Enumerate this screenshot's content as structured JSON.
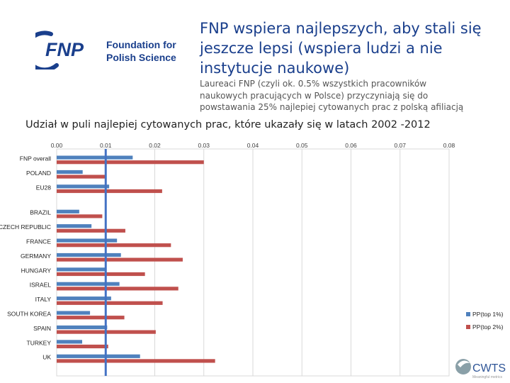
{
  "logo": {
    "abbrev": "FNP",
    "line1": "Foundation for",
    "line2": "Polish Science",
    "brand_color": "#1a3f8c"
  },
  "header": {
    "title": "FNP wspiera najlepszych, aby stali się jeszcze lepsi (wspiera ludzi a nie instytucje naukowe)",
    "subtitle": "Laureaci FNP (czyli ok. 0.5% wszystkich pracowników naukowych pracujących w Polsce) przyczyniają się do powstawania 25% najlepiej cytowanych prac z polską afiliacją",
    "caption": "Udział w puli najlepiej cytowanych prac, które ukazały się w latach 2002 -2012"
  },
  "chart_data": {
    "type": "bar",
    "orientation": "horizontal",
    "categories": [
      "FNP overall",
      "POLAND",
      "EU28",
      "BRAZIL",
      "CZECH REPUBLIC",
      "FRANCE",
      "GERMANY",
      "HUNGARY",
      "ISRAEL",
      "ITALY",
      "SOUTH KOREA",
      "SPAIN",
      "TURKEY",
      "UK"
    ],
    "group_gap_after": [
      "EU28"
    ],
    "series": [
      {
        "name": "PP(top 1%)",
        "color": "#4f81bd",
        "values": [
          0.0155,
          0.0053,
          0.0107,
          0.0046,
          0.0071,
          0.0123,
          0.0131,
          0.01,
          0.0128,
          0.0111,
          0.0068,
          0.0103,
          0.0052,
          0.017
        ]
      },
      {
        "name": "PP(top 2%)",
        "color": "#c0504d",
        "values": [
          0.03,
          0.0101,
          0.0215,
          0.0093,
          0.014,
          0.0233,
          0.0257,
          0.018,
          0.0248,
          0.0216,
          0.0138,
          0.0202,
          0.0105,
          0.0323
        ]
      }
    ],
    "xticks": [
      "0.00",
      "0.01",
      "0.02",
      "0.03",
      "0.04",
      "0.05",
      "0.06",
      "0.07",
      "0.08"
    ],
    "xlim": [
      0,
      0.08
    ],
    "reference_line": {
      "value": 0.01,
      "color": "#4472c4"
    },
    "grid": true,
    "legend_position": "bottom-right"
  },
  "footer": {
    "cwts_logo": "CWTS",
    "cwts_sub": "Meaningful metrics"
  }
}
